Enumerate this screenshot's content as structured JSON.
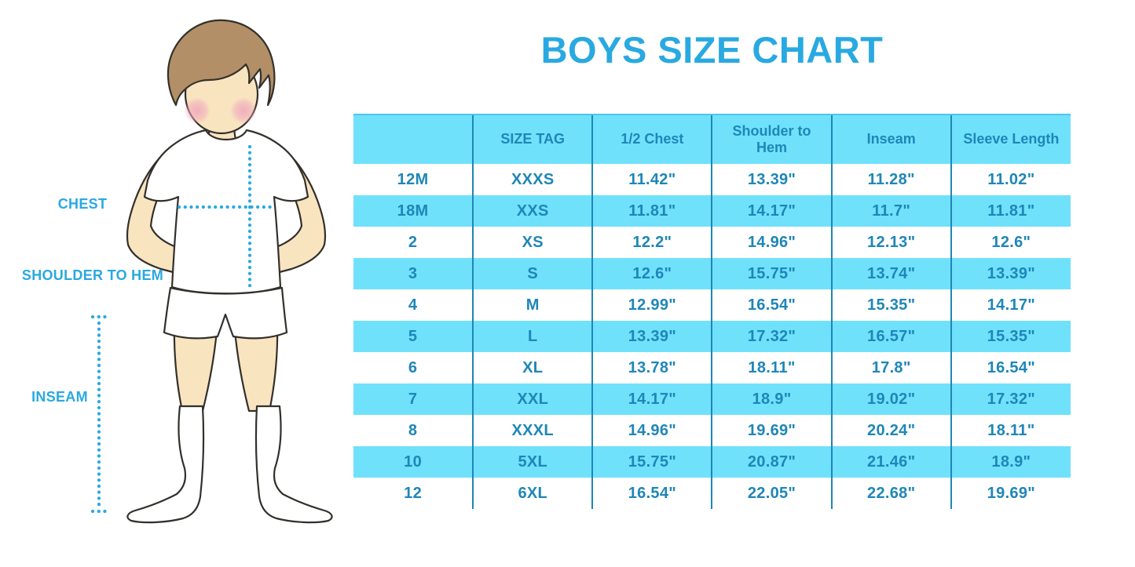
{
  "title": "BOYS SIZE CHART",
  "figure": {
    "labels": {
      "chest": "CHEST",
      "shoulder_to_hem": "SHOULDER TO HEM",
      "inseam": "INSEAM"
    },
    "illustration": "cartoon boy, brown hair, pink cheeks, white t-shirt, white shorts, white knee socks, hands on hips, dotted measurement guide lines"
  },
  "chart_data": {
    "type": "table",
    "title": "BOYS SIZE CHART",
    "columns": [
      "",
      "SIZE TAG",
      "1/2 Chest",
      "Shoulder to Hem",
      "Inseam",
      "Sleeve Length"
    ],
    "rows": [
      [
        "12M",
        "XXXS",
        "11.42\"",
        "13.39\"",
        "11.28\"",
        "11.02\""
      ],
      [
        "18M",
        "XXS",
        "11.81\"",
        "14.17\"",
        "11.7\"",
        "11.81\""
      ],
      [
        "2",
        "XS",
        "12.2\"",
        "14.96\"",
        "12.13\"",
        "12.6\""
      ],
      [
        "3",
        "S",
        "12.6\"",
        "15.75\"",
        "13.74\"",
        "13.39\""
      ],
      [
        "4",
        "M",
        "12.99\"",
        "16.54\"",
        "15.35\"",
        "14.17\""
      ],
      [
        "5",
        "L",
        "13.39\"",
        "17.32\"",
        "16.57\"",
        "15.35\""
      ],
      [
        "6",
        "XL",
        "13.78\"",
        "18.11\"",
        "17.8\"",
        "16.54\""
      ],
      [
        "7",
        "XXL",
        "14.17\"",
        "18.9\"",
        "19.02\"",
        "17.32\""
      ],
      [
        "8",
        "XXXL",
        "14.96\"",
        "19.69\"",
        "20.24\"",
        "18.11\""
      ],
      [
        "10",
        "5XL",
        "15.75\"",
        "20.87\"",
        "21.46\"",
        "18.9\""
      ],
      [
        "12",
        "6XL",
        "16.54\"",
        "22.05\"",
        "22.68\"",
        "19.69\""
      ]
    ],
    "units": "inches",
    "layout": {
      "striped": true,
      "stripe_rows": "even rows (18M, 3, 5, 7, 10)",
      "grid": "vertical separators only",
      "header_background": "#70E1FB"
    }
  },
  "colors": {
    "accent_blue": "#29A9E1",
    "table_text": "#1E86B8",
    "stripe_blue": "#70E1FB",
    "separator": "#1E86B8",
    "header_top_border": "#4FC5E9",
    "hair": "#B28F66",
    "skin": "#F9E4C0",
    "blush": "#F0A8BC",
    "outline": "#33302B"
  }
}
